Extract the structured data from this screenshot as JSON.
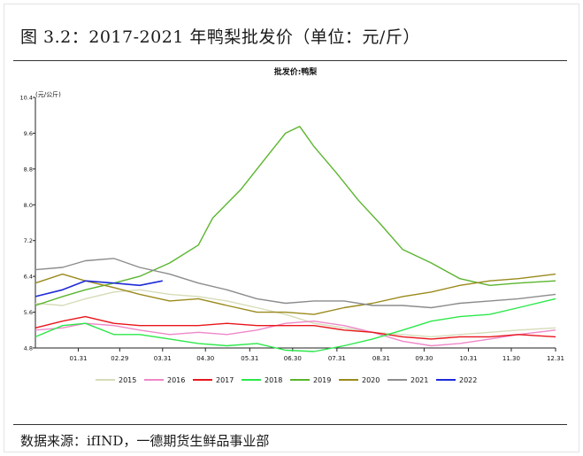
{
  "figure": {
    "caption": "图 3.2：2017-2021 年鸭梨批发价（单位：元/斤）",
    "source": "数据来源：ifIND，一德期货生鲜品事业部"
  },
  "chart_data": {
    "type": "line",
    "title": "批发价:鸭梨",
    "ylabel": "(元/公斤)",
    "xlabel": "",
    "ylim": [
      4.8,
      10.4
    ],
    "yticks": [
      4.8,
      5.6,
      6.4,
      7.2,
      8.0,
      8.8,
      9.6,
      10.4
    ],
    "ytick_labels": [
      "4.8",
      "5.6",
      "6.4",
      "7.2",
      "8.0",
      "8.8",
      "9.6",
      "10.4"
    ],
    "x_range": [
      "01-01",
      "12-31"
    ],
    "x_ticks": [
      "01.31",
      "02.29",
      "03.31",
      "04.30",
      "05.31",
      "06.30",
      "07.31",
      "08.31",
      "09.30",
      "10.31",
      "11.30",
      "12.31"
    ],
    "grid": false,
    "legend_position": "bottom",
    "series": [
      {
        "name": "2015",
        "color": "#d6dcb8",
        "x": [
          "01-01",
          "01-20",
          "02-05",
          "02-25",
          "03-15",
          "04-05",
          "04-25",
          "05-15",
          "06-05",
          "06-25",
          "07-15",
          "08-05",
          "08-25",
          "09-15",
          "10-05",
          "10-25",
          "11-15",
          "12-05",
          "12-31"
        ],
        "y": [
          5.8,
          5.75,
          5.9,
          6.05,
          6.1,
          6.0,
          5.95,
          5.85,
          5.7,
          5.55,
          5.35,
          5.25,
          5.15,
          5.1,
          5.05,
          5.1,
          5.15,
          5.2,
          5.25
        ]
      },
      {
        "name": "2016",
        "color": "#ee88c8",
        "x": [
          "01-01",
          "01-20",
          "02-05",
          "02-25",
          "03-15",
          "04-05",
          "04-25",
          "05-15",
          "06-05",
          "06-25",
          "07-15",
          "08-05",
          "08-25",
          "09-15",
          "10-05",
          "10-25",
          "11-15",
          "12-05",
          "12-31"
        ],
        "y": [
          5.2,
          5.25,
          5.35,
          5.3,
          5.2,
          5.1,
          5.15,
          5.1,
          5.2,
          5.35,
          5.4,
          5.3,
          5.15,
          4.95,
          4.85,
          4.9,
          5.0,
          5.1,
          5.2
        ]
      },
      {
        "name": "2017",
        "color": "#e8161c",
        "x": [
          "01-01",
          "01-20",
          "02-05",
          "02-25",
          "03-15",
          "04-05",
          "04-25",
          "05-15",
          "06-05",
          "06-25",
          "07-15",
          "08-05",
          "08-25",
          "09-15",
          "10-05",
          "10-25",
          "11-15",
          "12-05",
          "12-31"
        ],
        "y": [
          5.25,
          5.4,
          5.5,
          5.35,
          5.3,
          5.3,
          5.3,
          5.35,
          5.3,
          5.3,
          5.3,
          5.2,
          5.15,
          5.05,
          5.0,
          5.05,
          5.05,
          5.1,
          5.05
        ]
      },
      {
        "name": "2018",
        "color": "#2ce84a",
        "x": [
          "01-01",
          "01-20",
          "02-05",
          "02-25",
          "03-15",
          "04-05",
          "04-25",
          "05-15",
          "06-05",
          "06-25",
          "07-15",
          "08-05",
          "08-25",
          "09-15",
          "10-05",
          "10-25",
          "11-15",
          "12-05",
          "12-31"
        ],
        "y": [
          5.05,
          5.3,
          5.35,
          5.1,
          5.1,
          5.0,
          4.9,
          4.85,
          4.9,
          4.75,
          4.72,
          4.85,
          5.0,
          5.2,
          5.4,
          5.5,
          5.55,
          5.7,
          5.9
        ]
      },
      {
        "name": "2019",
        "color": "#5ab52e",
        "x": [
          "01-01",
          "01-20",
          "02-05",
          "02-25",
          "03-15",
          "04-05",
          "04-25",
          "05-05",
          "05-25",
          "06-10",
          "06-25",
          "07-05",
          "07-15",
          "07-31",
          "08-15",
          "08-31",
          "09-15",
          "10-05",
          "10-25",
          "11-15",
          "12-05",
          "12-31"
        ],
        "y": [
          5.75,
          5.95,
          6.1,
          6.25,
          6.4,
          6.7,
          7.1,
          7.7,
          8.35,
          9.0,
          9.6,
          9.75,
          9.3,
          8.7,
          8.1,
          7.55,
          7.0,
          6.7,
          6.35,
          6.2,
          6.25,
          6.3
        ]
      },
      {
        "name": "2020",
        "color": "#9a8a1c",
        "x": [
          "01-01",
          "01-20",
          "02-05",
          "02-25",
          "03-15",
          "04-05",
          "04-25",
          "05-15",
          "06-05",
          "06-25",
          "07-15",
          "08-05",
          "08-25",
          "09-15",
          "10-05",
          "10-25",
          "11-15",
          "12-05",
          "12-31"
        ],
        "y": [
          6.25,
          6.45,
          6.3,
          6.15,
          6.0,
          5.85,
          5.9,
          5.75,
          5.6,
          5.6,
          5.55,
          5.7,
          5.8,
          5.95,
          6.05,
          6.2,
          6.3,
          6.35,
          6.45
        ]
      },
      {
        "name": "2021",
        "color": "#8c8c8c",
        "x": [
          "01-01",
          "01-20",
          "02-05",
          "02-25",
          "03-15",
          "04-05",
          "04-25",
          "05-15",
          "06-05",
          "06-25",
          "07-15",
          "08-05",
          "08-25",
          "09-15",
          "10-05",
          "10-25",
          "11-15",
          "12-05",
          "12-31"
        ],
        "y": [
          6.55,
          6.6,
          6.75,
          6.8,
          6.6,
          6.45,
          6.25,
          6.1,
          5.9,
          5.8,
          5.85,
          5.85,
          5.75,
          5.75,
          5.7,
          5.8,
          5.85,
          5.9,
          6.0
        ]
      },
      {
        "name": "2022",
        "color": "#1e2ad8",
        "x": [
          "01-01",
          "01-20",
          "02-05",
          "02-25",
          "03-15",
          "03-31"
        ],
        "y": [
          5.95,
          6.1,
          6.3,
          6.25,
          6.2,
          6.3
        ]
      }
    ]
  }
}
